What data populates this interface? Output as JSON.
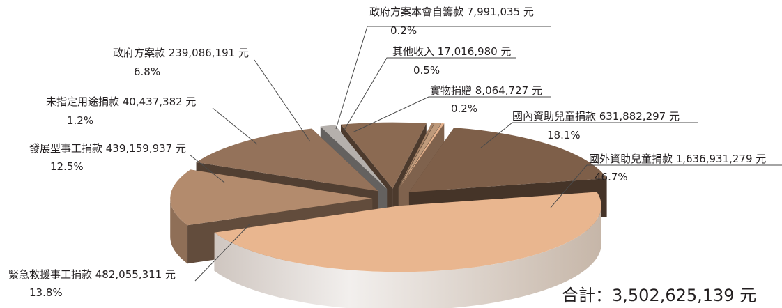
{
  "chart_data": {
    "type": "pie",
    "style": "3d-exploded",
    "slices": [
      {
        "name": "國外資助兒童捐款",
        "amount": "1,636,931,279",
        "unit": "元",
        "percent": 46.7,
        "color": "#e9b68f"
      },
      {
        "name": "緊急救援事工捐款",
        "amount": "482,055,311",
        "unit": "元",
        "percent": 13.8,
        "color": "#b38b6d"
      },
      {
        "name": "發展型事工捐款",
        "amount": "439,159,937",
        "unit": "元",
        "percent": 12.5,
        "color": "#94725a"
      },
      {
        "name": "未指定用途捐款",
        "amount": "40,437,382",
        "unit": "元",
        "percent": 1.2,
        "color": "#b5b0ac"
      },
      {
        "name": "政府方案款",
        "amount": "239,086,191",
        "unit": "元",
        "percent": 6.8,
        "color": "#8b6a52"
      },
      {
        "name": "政府方案本會自籌款",
        "amount": "7,991,035",
        "unit": "元",
        "percent": 0.2,
        "color": "#a88468"
      },
      {
        "name": "其他收入",
        "amount": "17,016,980",
        "unit": "元",
        "percent": 0.5,
        "color": "#bf9a7b"
      },
      {
        "name": "實物捐贈",
        "amount": "8,064,727",
        "unit": "元",
        "percent": 0.2,
        "color": "#e6b28c"
      },
      {
        "name": "國內資助兒童捐款",
        "amount": "631,882,297",
        "unit": "元",
        "percent": 18.1,
        "color": "#7e5f49"
      }
    ],
    "total_label": "合計：3,502,625,139 元"
  }
}
